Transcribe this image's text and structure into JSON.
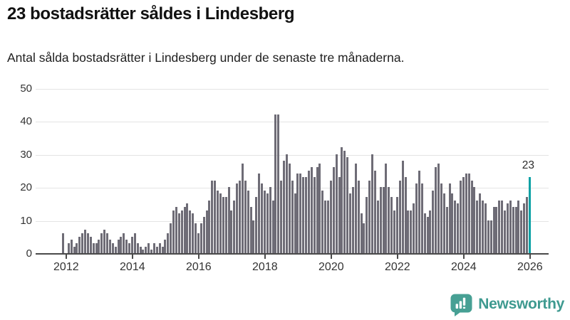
{
  "title": "23 bostadsrätter såldes i Lindesberg",
  "subtitle": "Antal sålda bostadsrätter i Lindesberg under de senaste tre månaderna.",
  "annotation": {
    "label": "23"
  },
  "branding": {
    "wordmark": "Newsworthy",
    "icon": "newsworthy-logo-icon"
  },
  "colors": {
    "bar": "#6e6c76",
    "highlight": "#0aa1a5",
    "axis": "#4a4a4a",
    "grid": "#e4e4e4",
    "tick_text": "#333333",
    "title_text": "#111111",
    "brand": "#3e9a90"
  },
  "chart_data": {
    "type": "bar",
    "title": "23 bostadsrätter såldes i Lindesberg",
    "subtitle": "Antal sålda bostadsrätter i Lindesberg under de senaste tre månaderna.",
    "xlabel": "",
    "ylabel": "",
    "ylim": [
      0,
      50
    ],
    "yticks": [
      0,
      10,
      20,
      30,
      40,
      50
    ],
    "x_tick_labels": [
      "2012",
      "2014",
      "2016",
      "2018",
      "2020",
      "2022",
      "2024",
      "2026"
    ],
    "grid": "horizontal",
    "legend": "none",
    "frequency": "monthly",
    "start_month": "2011-12",
    "end_month": "2026-01",
    "highlight_last": true,
    "highlight_value": 23,
    "values": [
      6,
      0,
      3,
      4,
      2,
      3,
      5,
      6,
      7,
      6,
      5,
      3,
      3,
      4,
      6,
      7,
      6,
      4,
      3,
      2,
      4,
      5,
      6,
      4,
      3,
      5,
      6,
      3,
      2,
      1,
      2,
      3,
      1,
      3,
      2,
      3,
      2,
      4,
      6,
      9,
      13,
      14,
      12,
      13,
      14,
      15,
      13,
      12,
      9,
      6,
      9,
      11,
      13,
      16,
      22,
      22,
      19,
      18,
      17,
      17,
      20,
      13,
      16,
      21,
      22,
      27,
      22,
      19,
      14,
      10,
      17,
      24,
      21,
      19,
      18,
      20,
      16,
      42,
      42,
      22,
      28,
      30,
      27,
      22,
      18,
      24,
      24,
      23,
      23,
      25,
      26,
      23,
      26,
      27,
      19,
      16,
      16,
      22,
      26,
      30,
      23,
      32,
      31,
      29,
      18,
      20,
      27,
      22,
      12,
      9,
      17,
      22,
      30,
      25,
      16,
      20,
      20,
      27,
      20,
      17,
      13,
      17,
      22,
      28,
      23,
      13,
      13,
      15,
      21,
      25,
      21,
      12,
      11,
      13,
      19,
      26,
      27,
      21,
      18,
      14,
      21,
      18,
      16,
      15,
      22,
      23,
      24,
      24,
      22,
      20,
      16,
      18,
      16,
      15,
      10,
      10,
      14,
      14,
      16,
      16,
      13,
      15,
      16,
      14,
      14,
      16,
      13,
      15,
      17,
      23
    ]
  }
}
